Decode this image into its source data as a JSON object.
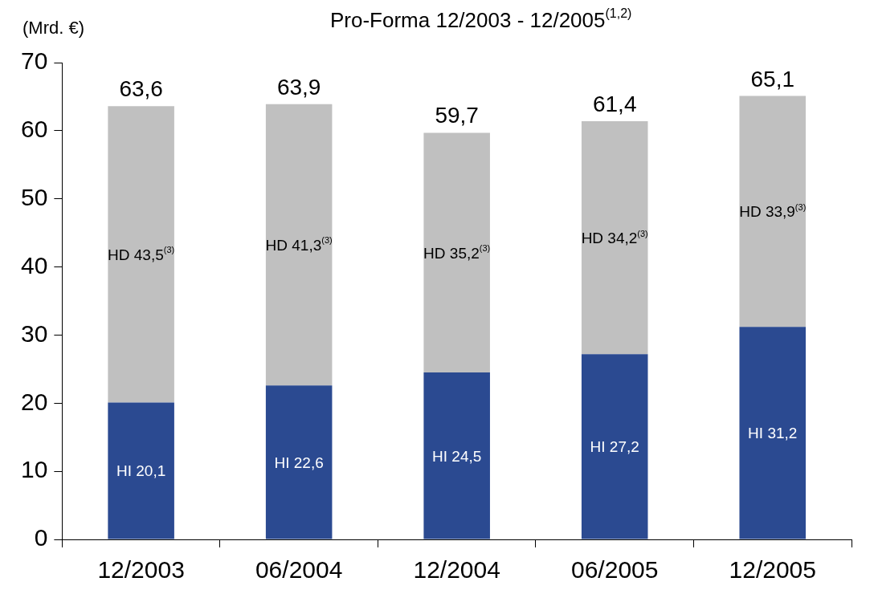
{
  "chart_data": {
    "type": "bar",
    "title": "Pro-Forma 12/2003 - 12/2005$^{(1,2)}$",
    "ylabel": "(Mrd. €)",
    "categories": [
      "12/2003",
      "06/2004",
      "12/2004",
      "06/2005",
      "12/2005"
    ],
    "stacked": true,
    "series": [
      {
        "name": null,
        "color": "#2b4a91",
        "values": [
          20.1,
          22.6,
          24.5,
          27.2,
          31.2
        ],
        "value_labels": [
          "HI 20,1",
          "HI 22,6",
          "HI 24,5",
          "HI 27,2",
          "HI 31,2"
        ]
      },
      {
        "name": null,
        "color": "#c0c0c0",
        "values": [
          43.5,
          41.3,
          35.2,
          34.2,
          33.9
        ],
        "value_labels": [
          "HD 43,5$^{(3)}$",
          "HD 41,3$^{(3)}$",
          "HD 35,2$^{(3)}$",
          "HD 34,2$^{(3)}$",
          "HD 33,9$^{(3)}$"
        ]
      }
    ],
    "totals": [
      "63,6",
      "63,9",
      "59,7",
      "61,4",
      "65,1"
    ],
    "ylim": [
      0,
      70
    ],
    "yticks": [
      0,
      10,
      20,
      30,
      40,
      50,
      60,
      70
    ],
    "grid": false,
    "legend": false
  }
}
